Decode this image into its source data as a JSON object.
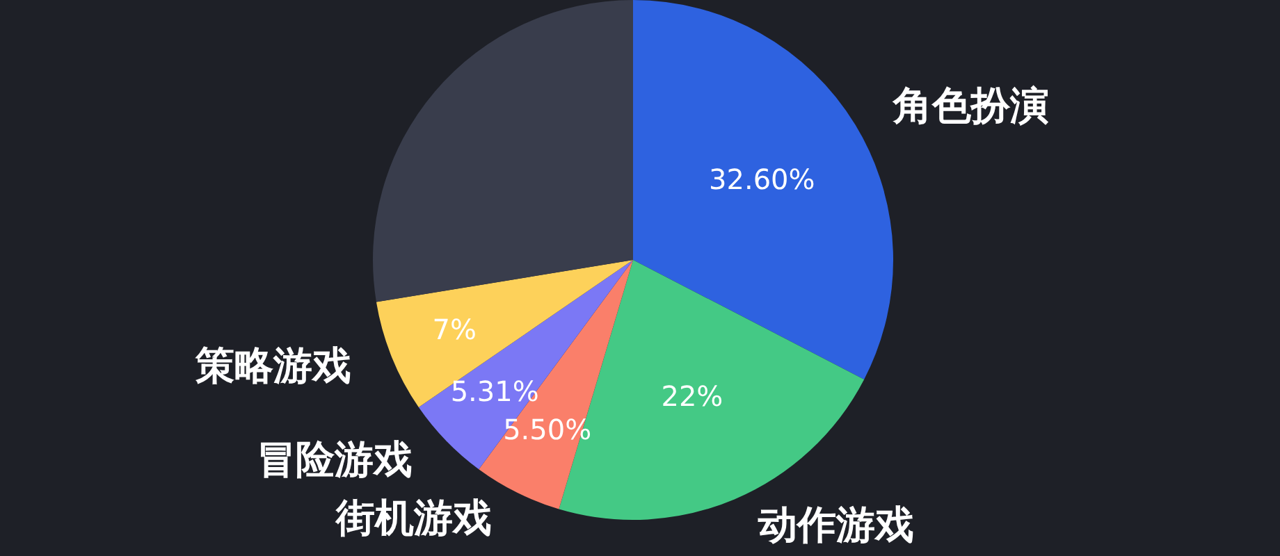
{
  "chart_data": {
    "type": "pie",
    "categories": [
      "角色扮演",
      "动作游戏",
      "街机游戏",
      "冒险游戏",
      "策略游戏",
      null
    ],
    "values": [
      32.6,
      22,
      5.5,
      5.31,
      7,
      27.59
    ],
    "value_labels": [
      "32.60%",
      "22%",
      "5.50%",
      "5.31%",
      "7%",
      null
    ],
    "colors": [
      "#2e62e0",
      "#44c985",
      "#fa7f6a",
      "#7b78f5",
      "#fdd15a",
      "#393d4c"
    ],
    "legend": false
  }
}
